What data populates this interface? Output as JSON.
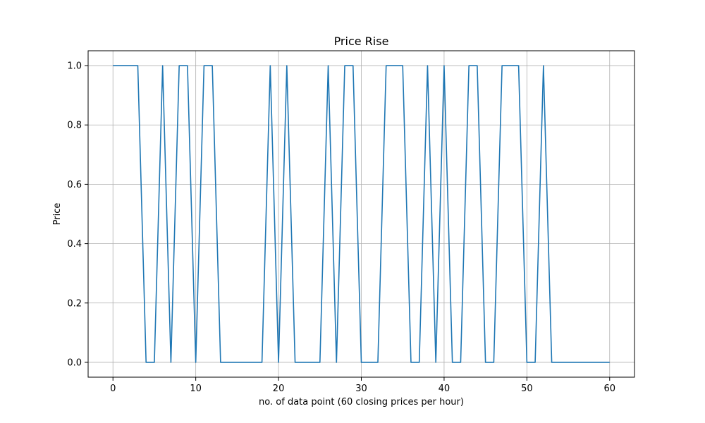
{
  "chart_data": {
    "type": "line",
    "title": "Price Rise",
    "xlabel": "no. of data point (60 closing prices per hour)",
    "ylabel": "Price",
    "xlim": [
      -3,
      63
    ],
    "ylim": [
      -0.05,
      1.05
    ],
    "xticks": [
      0,
      10,
      20,
      30,
      40,
      50,
      60
    ],
    "yticks": [
      0.0,
      0.2,
      0.4,
      0.6,
      0.8,
      1.0
    ],
    "xtick_labels": [
      "0",
      "10",
      "20",
      "30",
      "40",
      "50",
      "60"
    ],
    "ytick_labels": [
      "0.0",
      "0.2",
      "0.4",
      "0.6",
      "0.8",
      "1.0"
    ],
    "grid": true,
    "color": "#1f77b4",
    "series": [
      {
        "x": [
          0,
          1,
          2,
          3,
          4,
          5,
          6,
          7,
          8,
          9,
          10,
          11,
          12,
          13,
          14,
          15,
          16,
          17,
          18,
          19,
          20,
          21,
          22,
          23,
          24,
          25,
          26,
          27,
          28,
          29,
          30,
          31,
          32,
          33,
          34,
          35,
          36,
          37,
          38,
          39,
          40,
          41,
          42,
          43,
          44,
          45,
          46,
          47,
          48,
          49,
          50,
          51,
          52,
          53,
          54,
          55,
          56,
          57,
          58,
          59,
          60
        ],
        "y": [
          1,
          1,
          1,
          1,
          0,
          0,
          1,
          0,
          1,
          1,
          0,
          1,
          1,
          0,
          0,
          0,
          0,
          0,
          0,
          1,
          0,
          1,
          0,
          0,
          0,
          0,
          1,
          0,
          1,
          1,
          0,
          0,
          0,
          1,
          1,
          1,
          0,
          0,
          1,
          0,
          1,
          0,
          0,
          1,
          1,
          0,
          0,
          1,
          1,
          1,
          0,
          0,
          1,
          0,
          0,
          0,
          0,
          0,
          0,
          0,
          0
        ]
      }
    ]
  }
}
